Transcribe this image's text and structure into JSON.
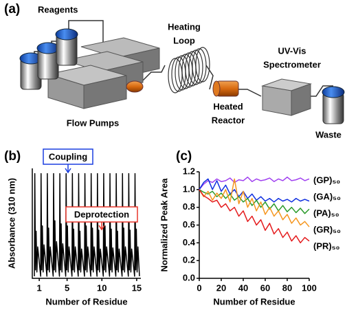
{
  "panel_labels": [
    "(a)",
    "(b)",
    "(c)"
  ],
  "diagram": {
    "reagents": "Reagents",
    "flow_pumps": "Flow Pumps",
    "heating_loop": [
      "Heating",
      "Loop"
    ],
    "heated_reactor": [
      "Heated",
      "Reactor"
    ],
    "spectrometer": [
      "UV-Vis",
      "Spectrometer"
    ],
    "waste": "Waste"
  },
  "chart_data": [
    {
      "type": "line",
      "x_label": "Number of Residue",
      "y_label": "Absorbance (310 nm)",
      "annotations": [
        "Coupling",
        "Deprotection"
      ],
      "color": "#000000",
      "x": [
        0.3,
        0.36,
        0.46,
        0.55,
        0.66,
        0.78,
        1.2,
        1.26,
        1.36,
        1.45,
        1.56,
        1.68,
        2.1,
        2.16,
        2.26,
        2.35,
        2.46,
        2.58,
        3.0,
        3.06,
        3.16,
        3.25,
        3.36,
        3.48,
        3.9,
        3.96,
        4.06,
        4.15,
        4.26,
        4.38,
        4.8,
        4.86,
        4.96,
        5.05,
        5.16,
        5.28,
        5.7,
        5.76,
        5.86,
        5.95,
        6.06,
        6.18,
        6.6,
        6.66,
        6.76,
        6.85,
        6.96,
        7.08,
        7.5,
        7.56,
        7.66,
        7.75,
        7.86,
        7.98,
        8.4,
        8.46,
        8.56,
        8.65,
        8.76,
        8.88,
        9.3,
        9.36,
        9.46,
        9.55,
        9.66,
        9.78,
        10.2,
        10.26,
        10.36,
        10.45,
        10.56,
        10.68,
        11.1,
        11.16,
        11.26,
        11.35,
        11.46,
        11.58,
        12.0,
        12.06,
        12.16,
        12.25,
        12.36,
        12.48,
        12.9,
        12.96,
        13.06,
        13.15,
        13.26,
        13.38,
        13.8,
        13.86,
        13.96,
        14.05,
        14.16,
        14.28,
        14.7,
        14.76,
        14.86,
        14.95,
        15.06,
        15.18,
        15.4
      ],
      "values": [
        0.02,
        1.0,
        0.08,
        0.45,
        0.06,
        0.3,
        0.02,
        1.0,
        0.08,
        0.5,
        0.06,
        0.32,
        0.02,
        1.0,
        0.08,
        0.48,
        0.06,
        0.3,
        0.02,
        1.0,
        0.08,
        0.55,
        0.06,
        0.35,
        0.02,
        1.0,
        0.08,
        0.52,
        0.06,
        0.33,
        0.02,
        1.0,
        0.08,
        0.5,
        0.06,
        0.3,
        0.02,
        1.0,
        0.08,
        0.47,
        0.06,
        0.3,
        0.02,
        1.0,
        0.08,
        0.45,
        0.06,
        0.28,
        0.02,
        1.0,
        0.08,
        0.5,
        0.06,
        0.3,
        0.02,
        1.0,
        0.08,
        0.48,
        0.06,
        0.3,
        0.02,
        1.0,
        0.08,
        0.46,
        0.06,
        0.28,
        0.02,
        1.0,
        0.08,
        0.5,
        0.06,
        0.3,
        0.02,
        1.0,
        0.08,
        0.47,
        0.06,
        0.29,
        0.02,
        1.0,
        0.08,
        0.45,
        0.06,
        0.28,
        0.02,
        1.0,
        0.08,
        0.48,
        0.06,
        0.3,
        0.02,
        1.0,
        0.08,
        0.46,
        0.06,
        0.28,
        0.02,
        1.0,
        0.08,
        0.47,
        0.06,
        0.3,
        0.02
      ],
      "xlim": [
        0,
        15.6
      ],
      "xticks": [
        1,
        5,
        10,
        15
      ],
      "ylim": [
        0,
        1.05
      ]
    },
    {
      "type": "line",
      "x_label": "Number of Residue",
      "y_label": "Normalized Peak Area",
      "x": [
        0,
        4,
        8,
        12,
        16,
        20,
        24,
        28,
        32,
        36,
        40,
        44,
        48,
        52,
        56,
        60,
        64,
        68,
        72,
        76,
        80,
        84,
        88,
        92,
        96,
        100
      ],
      "series": [
        {
          "name": "(GP)₅₀",
          "color": "#a040f0",
          "values": [
            1.0,
            1.06,
            1.1,
            1.08,
            1.12,
            1.09,
            1.1,
            1.13,
            1.08,
            1.11,
            1.1,
            1.14,
            1.09,
            1.12,
            1.1,
            1.11,
            1.13,
            1.09,
            1.12,
            1.1,
            1.14,
            1.1,
            1.11,
            1.13,
            1.1,
            1.12
          ]
        },
        {
          "name": "(GA)₅₀",
          "color": "#1030e0",
          "values": [
            1.0,
            1.08,
            1.12,
            1.0,
            1.1,
            0.98,
            1.05,
            0.95,
            1.0,
            0.92,
            0.98,
            0.9,
            0.95,
            0.88,
            0.92,
            0.87,
            0.9,
            0.86,
            0.9,
            0.87,
            0.89,
            0.86,
            0.9,
            0.87,
            0.89,
            0.87
          ]
        },
        {
          "name": "(PA)₅₀",
          "color": "#2a9a2a",
          "values": [
            1.0,
            0.97,
            0.95,
            0.98,
            0.92,
            0.96,
            0.9,
            0.95,
            0.88,
            0.92,
            0.86,
            0.9,
            0.82,
            0.88,
            0.8,
            0.86,
            0.78,
            0.84,
            0.76,
            0.82,
            0.75,
            0.8,
            0.74,
            0.79,
            0.73,
            0.78
          ]
        },
        {
          "name": "(GR)₅₀",
          "color": "#f5961e",
          "values": [
            1.0,
            0.92,
            0.98,
            0.88,
            0.96,
            0.9,
            1.0,
            0.86,
            1.12,
            0.84,
            0.98,
            0.8,
            0.9,
            0.76,
            0.86,
            0.72,
            0.8,
            0.7,
            0.76,
            0.66,
            0.72,
            0.62,
            0.68,
            0.6,
            0.64,
            0.58
          ]
        },
        {
          "name": "(PR)₅₀",
          "color": "#e41a1c",
          "values": [
            1.0,
            0.93,
            0.9,
            0.86,
            0.88,
            0.8,
            0.84,
            0.76,
            0.8,
            0.7,
            0.76,
            0.64,
            0.7,
            0.6,
            0.66,
            0.54,
            0.62,
            0.5,
            0.56,
            0.46,
            0.52,
            0.42,
            0.48,
            0.4,
            0.46,
            0.42
          ]
        }
      ],
      "xlim": [
        0,
        100
      ],
      "xticks": [
        0,
        20,
        40,
        60,
        80,
        100
      ],
      "ylim": [
        0,
        1.2
      ],
      "yticks": [
        {
          "value": 0,
          "label": "0.0"
        },
        0.2,
        0.4,
        0.6,
        0.8,
        {
          "value": 1,
          "label": "1.0"
        },
        1.2
      ]
    }
  ]
}
